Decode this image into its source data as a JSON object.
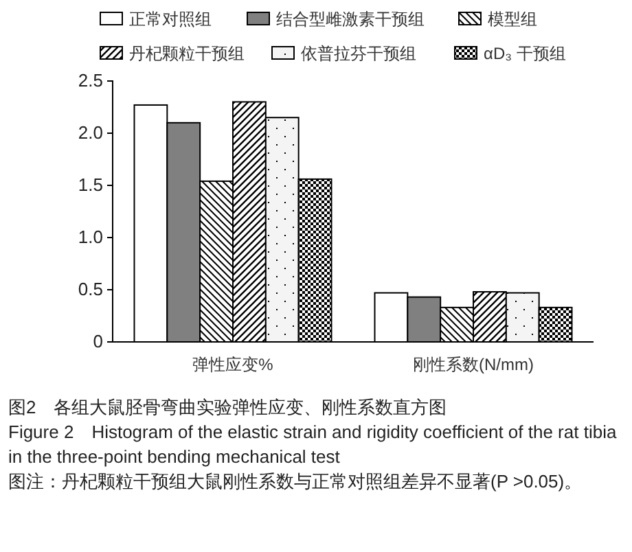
{
  "chart_data": {
    "type": "bar",
    "categories": [
      "弹性应变%",
      "刚性系数(N/mm)"
    ],
    "series": [
      {
        "name": "正常对照组",
        "color": "#ffffff",
        "values": [
          2.27,
          0.47
        ]
      },
      {
        "name": "结合型雌激素干预组",
        "color": "#808080",
        "values": [
          2.1,
          0.43
        ]
      },
      {
        "name": "模型组",
        "color": "#000000",
        "values": [
          1.54,
          0.33
        ]
      },
      {
        "name": "丹杞颗粒干预组",
        "color": "#000000",
        "values": [
          2.3,
          0.48
        ]
      },
      {
        "name": "依普拉芬干预组",
        "color": "#000000",
        "values": [
          2.15,
          0.47
        ]
      },
      {
        "name": "αD₃ 干预组",
        "color": "#000000",
        "values": [
          1.56,
          0.33
        ]
      }
    ],
    "ylim": [
      0,
      2.5
    ],
    "yticks": [
      0,
      {
        "value": 0.5,
        "label": "0.5"
      },
      {
        "value": 1,
        "label": "1.0"
      },
      {
        "value": 1.5,
        "label": "1.5"
      },
      {
        "value": 2,
        "label": "2.0"
      },
      {
        "value": 2.5,
        "label": "2.5"
      }
    ],
    "grid": false,
    "legend": "top",
    "annotations": [
      "图2　各组大鼠胫骨弯曲实验弹性应变、刚性系数直方图",
      "Figure 2　Histogram of the elastic strain and rigidity coefficient of the rat tibia in the three-point bending mechanical test",
      "图注：丹杞颗粒干预组大鼠刚性系数与正常对照组差异不显著(P >0.05)。"
    ]
  }
}
